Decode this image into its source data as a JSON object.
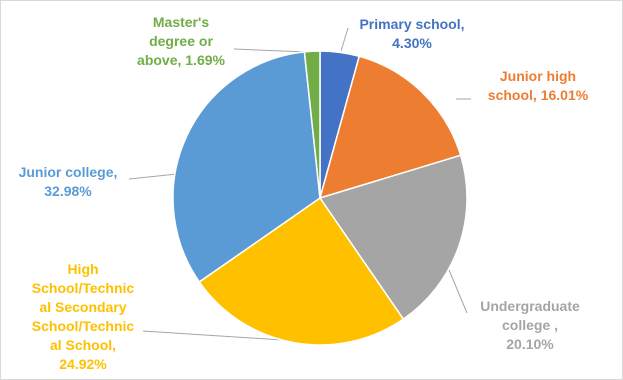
{
  "chart_data": {
    "type": "pie",
    "title": "",
    "legend": "none",
    "slices": [
      {
        "label_lines": [
          "Primary school,",
          "4.30%"
        ],
        "value": 4.3,
        "color": "#4472c4"
      },
      {
        "label_lines": [
          "Junior high",
          "school, 16.01%"
        ],
        "value": 16.01,
        "color": "#ed7d31"
      },
      {
        "label_lines": [
          "Undergraduate",
          "college ,",
          "20.10%"
        ],
        "value": 20.1,
        "color": "#a5a5a5"
      },
      {
        "label_lines": [
          "High",
          "School/Technic",
          "al Secondary",
          "School/Technic",
          "al School,",
          "24.92%"
        ],
        "value": 24.92,
        "color": "#ffc000"
      },
      {
        "label_lines": [
          "Junior college,",
          "32.98%"
        ],
        "value": 32.98,
        "color": "#5b9bd5"
      },
      {
        "label_lines": [
          "Master's",
          "degree or",
          "above, 1.69%"
        ],
        "value": 1.69,
        "color": "#70ad47"
      }
    ]
  }
}
